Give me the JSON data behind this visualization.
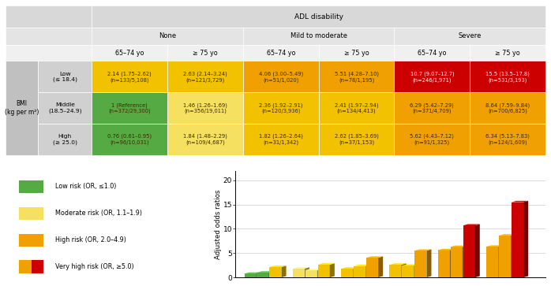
{
  "title": "ADL disability",
  "col_groups": [
    "None",
    "Mild to moderate",
    "Severe"
  ],
  "col_subgroups": [
    "65–74 yo",
    "≥ 75 yo",
    "65–74 yo",
    "≥ 75 yo",
    "65–74 yo",
    "≥ 75 yo"
  ],
  "row_header": "BMI\n(kg per m²)",
  "row_labels": [
    "Low\n(≤ 18.4)",
    "Middle\n(18.5–24.9)",
    "High\n(≥ 25.0)"
  ],
  "cell_data": [
    [
      "2.14 (1.75–2.62)\n(n=133/5,108)",
      "2.63 (2.14–3.24)\n(n=121/3,729)",
      "4.06 (3.00–5.49)\n(n=51/1,020)",
      "5.51 (4.28–7.10)\n(n=78/1,195)",
      "10.7 (9.07–12.7)\n(n=246/1,971)",
      "15.5 (13.5–17.8)\n(n=531/3,193)"
    ],
    [
      "1 (Reference)\n(n=372/29,300)",
      "1.46 (1.26–1.69)\n(n=356/19,011)",
      "2.36 (1.92–2.91)\n(n=120/3,936)",
      "2.41 (1.97–2.94)\n(n=134/4,413)",
      "6.29 (5.42–7.29)\n(n=371/4,709)",
      "8.64 (7.59–9.84)\n(n=700/6,825)"
    ],
    [
      "0.76 (0.61–0.95)\n(n=96/10,031)",
      "1.84 (1.48–2.29)\n(n=109/4,687)",
      "1.82 (1.26–2.64)\n(n=31/1,342)",
      "2.62 (1.85–3.69)\n(n=37/1,153)",
      "5.62 (4.43–7.12)\n(n=91/1,325)",
      "6.34 (5.13–7.83)\n(n=124/1,609)"
    ]
  ],
  "cell_colors": [
    [
      "#f2c100",
      "#f2c100",
      "#f0a000",
      "#f0a000",
      "#cc0000",
      "#cc0000"
    ],
    [
      "#55aa44",
      "#f5e060",
      "#f2c100",
      "#f2c100",
      "#f0a000",
      "#f0a000"
    ],
    [
      "#55aa44",
      "#f5e060",
      "#f2c100",
      "#f2c100",
      "#f0a000",
      "#f0a000"
    ]
  ],
  "cell_text_colors": [
    [
      "#3a2a00",
      "#3a2a00",
      "#3a2a00",
      "#3a2a00",
      "#ffffff",
      "#ffffff"
    ],
    [
      "#3a2a00",
      "#3a2a00",
      "#3a2a00",
      "#3a2a00",
      "#3a2a00",
      "#3a2a00"
    ],
    [
      "#3a2a00",
      "#3a2a00",
      "#3a2a00",
      "#3a2a00",
      "#3a2a00",
      "#3a2a00"
    ]
  ],
  "bar_groups": [
    {
      "vals": [
        0.76,
        1.0,
        2.14
      ],
      "colors": [
        "#55aa44",
        "#55aa44",
        "#f2c100"
      ]
    },
    {
      "vals": [
        1.84,
        1.46,
        2.63
      ],
      "colors": [
        "#f5e060",
        "#f5e060",
        "#f2c100"
      ]
    },
    {
      "vals": [
        1.82,
        2.36,
        4.06
      ],
      "colors": [
        "#f2c100",
        "#f2c100",
        "#f0a000"
      ]
    },
    {
      "vals": [
        2.62,
        2.41,
        5.51
      ],
      "colors": [
        "#f2c100",
        "#f2c100",
        "#f0a000"
      ]
    },
    {
      "vals": [
        5.62,
        6.29,
        10.7
      ],
      "colors": [
        "#f0a000",
        "#f0a000",
        "#cc0000"
      ]
    },
    {
      "vals": [
        6.34,
        8.64,
        15.5
      ],
      "colors": [
        "#f0a000",
        "#f0a000",
        "#cc0000"
      ]
    }
  ],
  "ylim": [
    0,
    22
  ],
  "yticks": [
    0,
    5,
    10,
    15,
    20
  ],
  "ylabel": "Adjusted odds ratios",
  "bg_color": "#ffffff",
  "header_bg1": "#d8d8d8",
  "header_bg2": "#e4e4e4",
  "header_bg3": "#f0f0f0",
  "row_label_bg": "#d0d0d0",
  "bmi_label_bg": "#c0c0c0"
}
